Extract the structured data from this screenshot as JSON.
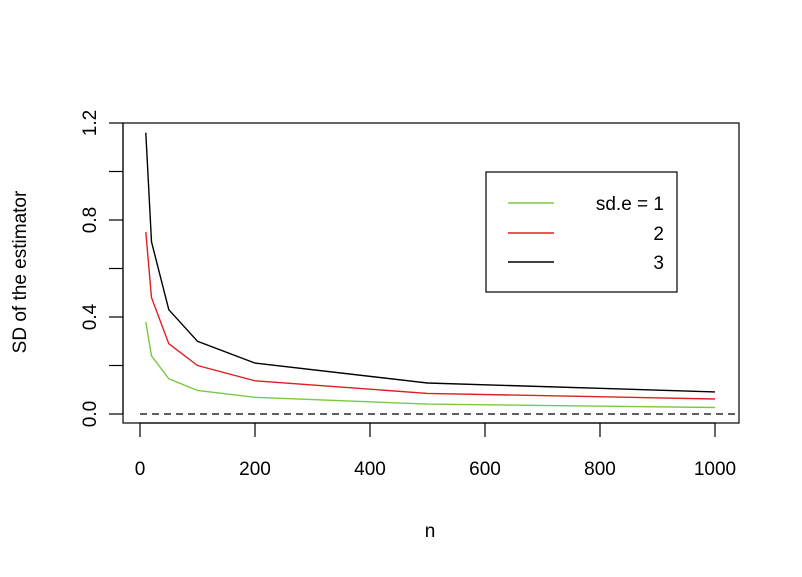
{
  "chart_data": {
    "type": "line",
    "title": "",
    "xlabel": "n",
    "ylabel": "SD of the estimator",
    "xlim": [
      0,
      1000
    ],
    "ylim": [
      0.0,
      1.2
    ],
    "x_ticks": [
      "0",
      "200",
      "400",
      "600",
      "800",
      "1000"
    ],
    "y_ticks": [
      "0.0",
      "0.4",
      "0.8",
      "1.2"
    ],
    "y_minor_ticks": [
      0.2,
      0.6,
      1.0
    ],
    "grid": false,
    "legend_position": "top-right (inset)",
    "x": [
      10,
      20,
      50,
      100,
      200,
      500,
      1000
    ],
    "series": [
      {
        "name": "sd.e = 1",
        "label": "sd.e = 1",
        "color": "#7ac943",
        "values": [
          0.38,
          0.24,
          0.145,
          0.097,
          0.069,
          0.041,
          0.027
        ]
      },
      {
        "name": "2",
        "label": "2",
        "color": "#e02020",
        "values": [
          0.75,
          0.48,
          0.29,
          0.2,
          0.137,
          0.085,
          0.062
        ]
      },
      {
        "name": "3",
        "label": "3",
        "color": "#000000",
        "values": [
          1.16,
          0.71,
          0.43,
          0.3,
          0.21,
          0.128,
          0.091
        ]
      }
    ],
    "reference_line": {
      "y": 0.0,
      "style": "dashed",
      "color": "#000000"
    }
  }
}
